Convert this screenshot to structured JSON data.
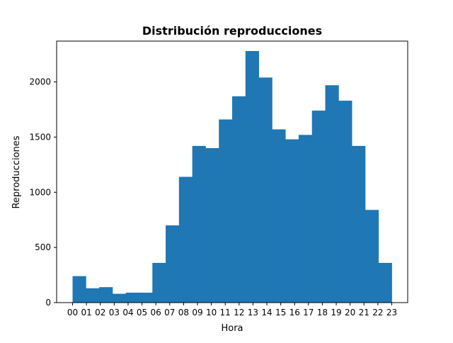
{
  "chart_data": {
    "type": "bar",
    "title": "Distribución reproducciones",
    "xlabel": "Hora",
    "ylabel": "Reproducciones",
    "categories": [
      "00",
      "01",
      "02",
      "03",
      "04",
      "05",
      "06",
      "07",
      "08",
      "09",
      "10",
      "11",
      "12",
      "13",
      "14",
      "15",
      "16",
      "17",
      "18",
      "19",
      "20",
      "21",
      "22",
      "23"
    ],
    "values": [
      240,
      130,
      140,
      80,
      90,
      90,
      360,
      700,
      1140,
      1420,
      1400,
      1660,
      1870,
      2280,
      2040,
      1570,
      1480,
      1520,
      1740,
      1970,
      1830,
      1420,
      840,
      360
    ],
    "ylim": [
      0,
      2400
    ],
    "yticks": [
      0,
      500,
      1000,
      1500,
      2000
    ],
    "bar_color": "#1f77b4",
    "grid": false,
    "legend": "none"
  }
}
